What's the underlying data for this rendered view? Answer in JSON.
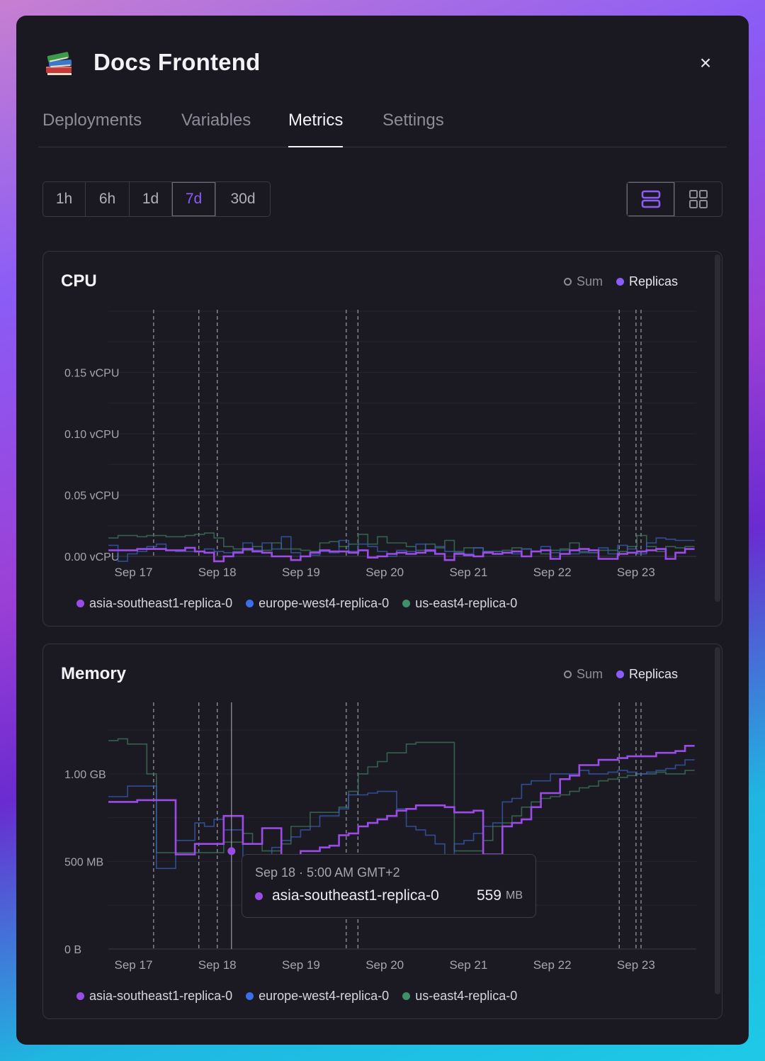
{
  "service": {
    "title": "Docs Frontend",
    "logo_icon": "books-icon"
  },
  "close_label": "×",
  "tabs": [
    {
      "label": "Deployments",
      "active": false
    },
    {
      "label": "Variables",
      "active": false
    },
    {
      "label": "Metrics",
      "active": true
    },
    {
      "label": "Settings",
      "active": false
    }
  ],
  "ranges": [
    {
      "label": "1h",
      "active": false
    },
    {
      "label": "6h",
      "active": false
    },
    {
      "label": "1d",
      "active": false
    },
    {
      "label": "7d",
      "active": true
    },
    {
      "label": "30d",
      "active": false
    }
  ],
  "view_modes": [
    {
      "icon": "stacked-rows-icon",
      "active": true
    },
    {
      "icon": "grid-icon",
      "active": false
    }
  ],
  "toggle": {
    "sum": "Sum",
    "replicas": "Replicas"
  },
  "colors": {
    "accent": "#8b5cf6",
    "asia": "#9b4ce6",
    "europe": "#3b6ee8",
    "us": "#3f8f6a",
    "dash": "#8a8994"
  },
  "legend": [
    {
      "name": "asia-southeast1-replica-0",
      "color": "#9b4ce6"
    },
    {
      "name": "europe-west4-replica-0",
      "color": "#3b6ee8"
    },
    {
      "name": "us-east4-replica-0",
      "color": "#3f8f6a"
    }
  ],
  "tooltip": {
    "date": "Sep 18 · 5:00 AM GMT+2",
    "series": "asia-southeast1-replica-0",
    "value": "559",
    "unit": "MB"
  },
  "chart_data": [
    {
      "type": "line",
      "title": "CPU",
      "x_ticks": [
        "Sep 17",
        "Sep 18",
        "Sep 19",
        "Sep 20",
        "Sep 21",
        "Sep 22",
        "Sep 23"
      ],
      "y_ticks": [
        "0.00 vCPU",
        "0.05 vCPU",
        "0.10 vCPU",
        "0.15 vCPU"
      ],
      "ylim": [
        0,
        0.2
      ],
      "deploy_markers_days": [
        0.24,
        0.78,
        1.0,
        2.54,
        2.68,
        5.8,
        6.0,
        6.06
      ],
      "x_range_days": [
        -0.3,
        6.72
      ],
      "series": [
        {
          "name": "asia-southeast1-replica-0",
          "values": [
            0.005,
            0.005,
            0.005,
            0.006,
            0.006,
            0.006,
            0.005,
            0.005,
            0.007,
            0.004,
            0.003,
            -0.004,
            0.0,
            0.003,
            0.006,
            0.004,
            0.003,
            0.0,
            0.0,
            -0.003,
            0.0,
            0.003,
            0.005,
            0.004,
            0.004,
            0.003,
            0.005,
            -0.001,
            0.0,
            0.002,
            0.003,
            0.002,
            0.003,
            0.005,
            0.002,
            -0.003,
            0.002,
            0.001,
            0.0,
            0.003,
            0.002,
            0.003,
            0.004,
            0.0,
            0.004,
            0.005,
            -0.002,
            0.002,
            0.005,
            0.006,
            0.005,
            -0.002,
            -0.002,
            0.002,
            0.003,
            0.004,
            0.005,
            0.006,
            -0.002,
            0.003,
            0.006
          ]
        },
        {
          "name": "europe-west4-replica-0",
          "values": [
            0.009,
            -0.004,
            0.002,
            0.004,
            0.008,
            0.01,
            0.005,
            0.004,
            0.004,
            0.004,
            0.006,
            0.004,
            0.003,
            0.004,
            0.011,
            0.005,
            0.011,
            0.006,
            0.016,
            0.003,
            0.0,
            0.001,
            0.004,
            0.003,
            0.013,
            0.004,
            0.01,
            0.008,
            0.004,
            0.0,
            0.005,
            0.004,
            0.01,
            0.004,
            0.008,
            0.004,
            0.003,
            0.002,
            0.007,
            0.004,
            0.004,
            0.003,
            0.002,
            0.006,
            0.004,
            0.008,
            0.003,
            0.005,
            0.002,
            0.003,
            0.003,
            0.007,
            0.002,
            0.009,
            0.006,
            0.002,
            0.011,
            0.015,
            0.014,
            0.013,
            0.013
          ]
        },
        {
          "name": "us-east4-replica-0",
          "values": [
            0.015,
            0.017,
            0.017,
            0.016,
            0.017,
            0.017,
            0.016,
            0.016,
            0.017,
            0.018,
            0.019,
            0.015,
            0.008,
            0.006,
            0.005,
            0.008,
            0.005,
            0.011,
            0.006,
            0.006,
            0.005,
            0.004,
            0.011,
            0.012,
            0.008,
            0.01,
            0.018,
            0.01,
            0.016,
            0.011,
            0.011,
            0.008,
            0.005,
            0.01,
            0.007,
            0.013,
            0.004,
            0.007,
            0.007,
            0.004,
            0.004,
            0.005,
            0.007,
            0.006,
            0.004,
            0.002,
            0.005,
            0.006,
            0.011,
            0.004,
            0.003,
            0.005,
            0.005,
            0.004,
            0.008,
            0.017,
            0.008,
            0.004,
            0.008,
            0.007,
            0.008
          ]
        }
      ]
    },
    {
      "type": "line",
      "title": "Memory",
      "x_ticks": [
        "Sep 17",
        "Sep 18",
        "Sep 19",
        "Sep 20",
        "Sep 21",
        "Sep 22",
        "Sep 23"
      ],
      "y_ticks": [
        "0 B",
        "500 MB",
        "1.00 GB"
      ],
      "ylim": [
        0,
        1400
      ],
      "deploy_markers_days": [
        0.24,
        0.78,
        1.0,
        2.54,
        2.68,
        5.8,
        6.0,
        6.06
      ],
      "x_range_days": [
        -0.3,
        6.72
      ],
      "series": [
        {
          "name": "asia-southeast1-replica-0",
          "values": [
            840,
            840,
            840,
            850,
            850,
            850,
            850,
            540,
            540,
            600,
            600,
            600,
            760,
            760,
            600,
            600,
            690,
            690,
            520,
            520,
            559,
            559,
            580,
            590,
            650,
            660,
            700,
            720,
            740,
            760,
            790,
            800,
            820,
            820,
            820,
            810,
            780,
            780,
            790,
            540,
            540,
            700,
            720,
            740,
            810,
            890,
            890,
            970,
            990,
            1050,
            1050,
            1080,
            1080,
            1090,
            1100,
            1100,
            1100,
            1120,
            1120,
            1130,
            1160
          ]
        },
        {
          "name": "europe-west4-replica-0",
          "values": [
            870,
            870,
            930,
            930,
            930,
            460,
            460,
            620,
            620,
            720,
            700,
            740,
            680,
            680,
            520,
            520,
            480,
            580,
            620,
            640,
            680,
            700,
            760,
            760,
            800,
            880,
            880,
            890,
            900,
            900,
            800,
            700,
            680,
            650,
            600,
            500,
            600,
            620,
            660,
            700,
            720,
            840,
            860,
            940,
            960,
            960,
            1000,
            1000,
            1000,
            1020,
            1000,
            1000,
            1010,
            1020,
            1010,
            1000,
            1010,
            1020,
            1030,
            1050,
            1080
          ]
        },
        {
          "name": "us-east4-replica-0",
          "values": [
            1190,
            1200,
            1170,
            1170,
            1000,
            550,
            550,
            550,
            550,
            550,
            550,
            550,
            610,
            610,
            660,
            600,
            560,
            560,
            600,
            700,
            700,
            780,
            780,
            780,
            810,
            900,
            1000,
            1040,
            1070,
            1120,
            1120,
            1170,
            1180,
            1180,
            1180,
            1180,
            560,
            560,
            560,
            620,
            700,
            720,
            760,
            810,
            840,
            860,
            870,
            880,
            900,
            920,
            930,
            960,
            970,
            980,
            990,
            1000,
            1000,
            1010,
            1000,
            1000,
            1020
          ]
        }
      ]
    }
  ]
}
